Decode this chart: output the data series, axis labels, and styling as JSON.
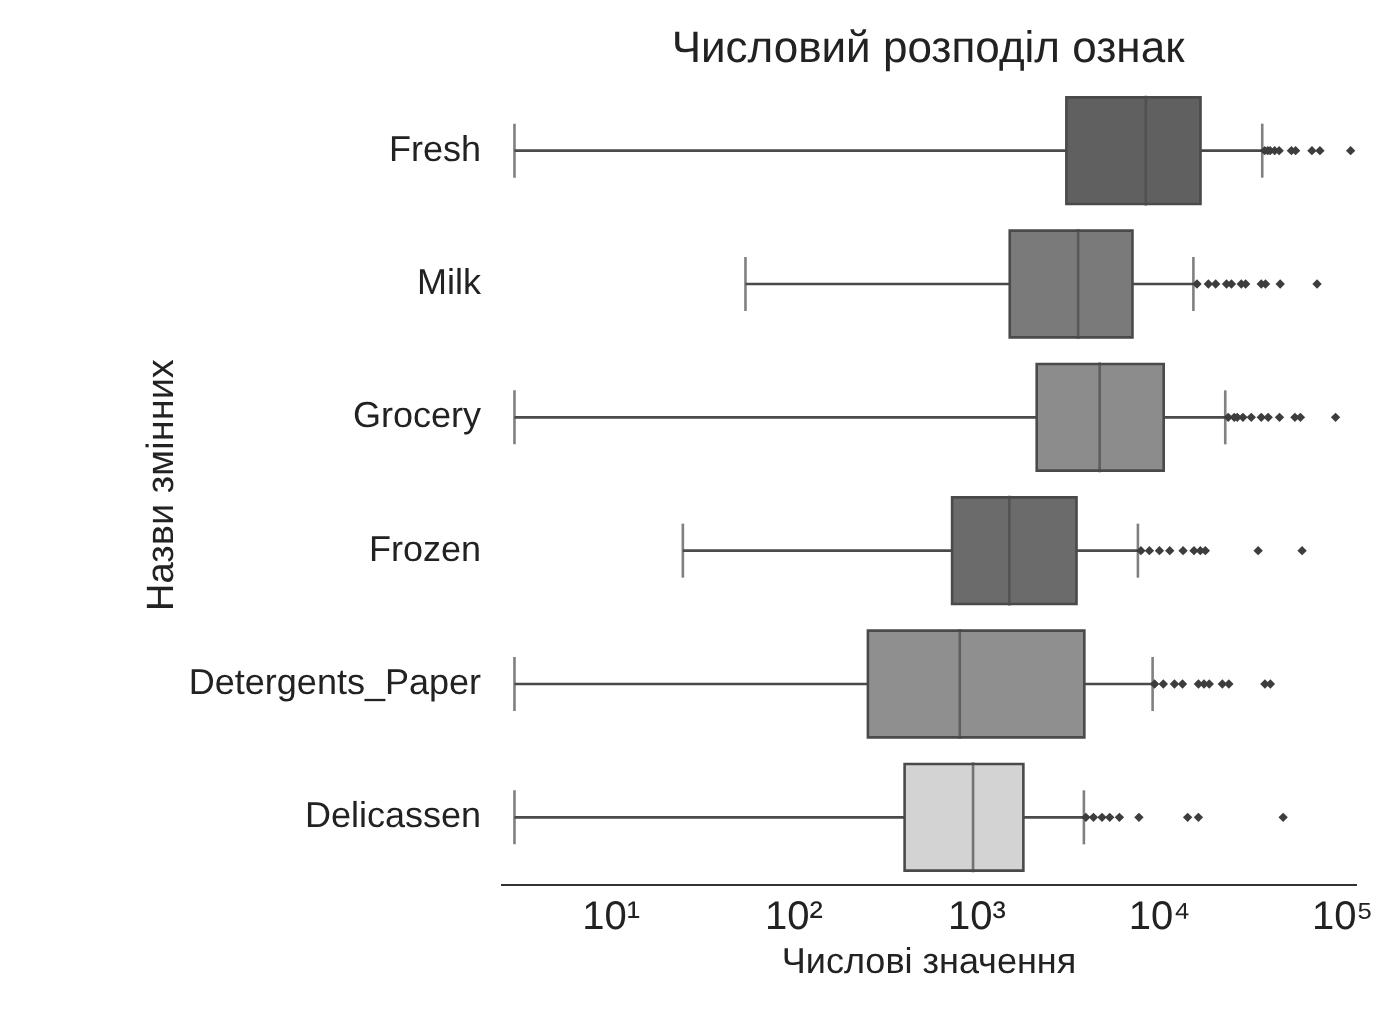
{
  "chart_data": {
    "type": "box",
    "orientation": "horizontal",
    "title": "Числовий розподіл ознак",
    "xlabel": "Числові значення",
    "ylabel": "Назви змінних",
    "categories": [
      "Fresh",
      "Milk",
      "Grocery",
      "Frozen",
      "Detergents_Paper",
      "Delicassen"
    ],
    "colors": [
      "#606060",
      "#7a7a7a",
      "#8c8c8c",
      "#6b6b6b",
      "#8f8f8f",
      "#d3d3d3"
    ],
    "boxes": [
      {
        "low": 3,
        "q1": 3128,
        "median": 8504,
        "q3": 16934,
        "high": 36847,
        "outliers": [
          38000,
          39500,
          40700,
          43100,
          45600,
          53200,
          56100,
          68900,
          76200,
          112151
        ]
      },
      {
        "low": 55,
        "q1": 1533,
        "median": 3627,
        "q3": 7190,
        "high": 15488,
        "outliers": [
          16200,
          18700,
          20500,
          23500,
          25000,
          28300,
          29900,
          36400,
          38400,
          46200,
          73498
        ]
      },
      {
        "low": 3,
        "q1": 2153,
        "median": 4756,
        "q3": 10656,
        "high": 23127,
        "outliers": [
          24000,
          25900,
          26900,
          28900,
          32100,
          36400,
          39700,
          45800,
          55600,
          59600,
          92780
        ]
      },
      {
        "low": 25,
        "q1": 742,
        "median": 1526,
        "q3": 3554,
        "high": 7700,
        "outliers": [
          8000,
          8900,
          10100,
          11500,
          13600,
          15600,
          16900,
          18000,
          35000,
          60869
        ]
      },
      {
        "low": 3,
        "q1": 257,
        "median": 817,
        "q3": 3922,
        "high": 9265,
        "outliers": [
          9500,
          10600,
          12200,
          13500,
          16500,
          17700,
          18900,
          22300,
          24200,
          38100,
          40827
        ]
      },
      {
        "low": 3,
        "q1": 408,
        "median": 966,
        "q3": 1820,
        "high": 3900,
        "outliers": [
          4000,
          4400,
          4900,
          5400,
          6100,
          7800,
          14400,
          16500,
          47943
        ]
      }
    ],
    "log": "x",
    "xlim": [
      2.5,
      120000
    ],
    "xticks": [
      {
        "value": 10,
        "label": "10¹"
      },
      {
        "value": 100,
        "label": "10²"
      },
      {
        "value": 1000,
        "label": "10³"
      },
      {
        "value": 10000,
        "label": "10⁴"
      },
      {
        "value": 100000,
        "label": "10⁵"
      }
    ],
    "marker": "diamond",
    "grid": false
  }
}
